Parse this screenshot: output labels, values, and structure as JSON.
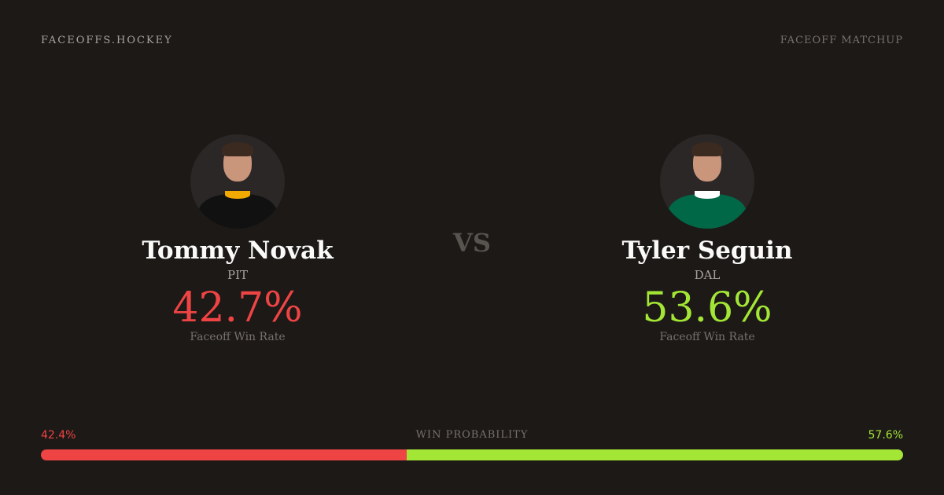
{
  "header": {
    "brand": "FACEOFFS.HOCKEY",
    "tag": "FACEOFF MATCHUP"
  },
  "vs_label": "VS",
  "players": [
    {
      "name": "Tommy Novak",
      "team": "PIT",
      "win_rate": "42.7%",
      "win_rate_label": "Faceoff Win Rate",
      "color": "#ef4444",
      "jersey_color": "#111111",
      "collar_color": "#f2a900"
    },
    {
      "name": "Tyler Seguin",
      "team": "DAL",
      "win_rate": "53.6%",
      "win_rate_label": "Faceoff Win Rate",
      "color": "#a3e635",
      "jersey_color": "#006847",
      "collar_color": "#ffffff"
    }
  ],
  "win_probability": {
    "label": "WIN PROBABILITY",
    "left": "42.4%",
    "right": "57.6%",
    "left_value": 42.4,
    "right_value": 57.6,
    "left_color": "#ef4444",
    "right_color": "#a3e635"
  }
}
